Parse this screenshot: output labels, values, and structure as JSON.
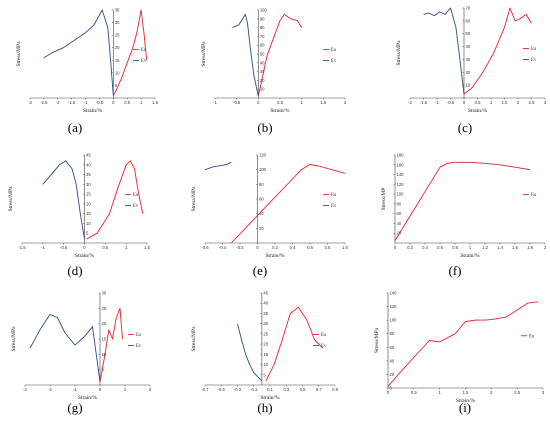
{
  "figure": {
    "background": "#ffffff"
  },
  "colors": {
    "eu": "#e8212b",
    "ev": "#2b4a8c",
    "axis": "#444444"
  },
  "chart_data": [
    {
      "type": "line",
      "label": "(a)",
      "xlabel": "Strain/%",
      "ylabel": "Stress/MPa",
      "xlim": [
        -3,
        1.5
      ],
      "ylim": [
        0,
        35
      ],
      "xticks": [
        "-3",
        "-2.5",
        "-2",
        "-1.5",
        "-1",
        "-0.5",
        "0",
        "0.5",
        "1",
        "1.5"
      ],
      "yticks": [
        "5",
        "10",
        "15",
        "20",
        "25",
        "30",
        "35"
      ],
      "series": [
        {
          "name": "Eu",
          "color": "eu",
          "x": [
            0,
            0.1,
            0.3,
            0.5,
            0.7,
            0.85,
            1,
            1.1,
            1.2
          ],
          "y": [
            1,
            3,
            8,
            14,
            20,
            26,
            35,
            26,
            15
          ]
        },
        {
          "name": "Ev",
          "color": "ev",
          "x": [
            -2.5,
            -2.2,
            -1.8,
            -1.4,
            -1.0,
            -0.7,
            -0.4,
            -0.2,
            -0.1,
            0
          ],
          "y": [
            16,
            18,
            20,
            23,
            26,
            29,
            35,
            28,
            15,
            1
          ]
        }
      ]
    },
    {
      "type": "line",
      "label": "(b)",
      "xlabel": "Strain/%",
      "ylabel": "Stress/MPa",
      "xlim": [
        -1,
        2
      ],
      "ylim": [
        0,
        100
      ],
      "xticks": [
        "-1",
        "-0.5",
        "0",
        "0.5",
        "1",
        "1.5",
        "2"
      ],
      "yticks": [
        "10",
        "20",
        "30",
        "40",
        "50",
        "60",
        "70",
        "80",
        "90",
        "100"
      ],
      "series": [
        {
          "name": "Eu",
          "color": "eu",
          "x": [
            0,
            0.1,
            0.2,
            0.35,
            0.5,
            0.6,
            0.75,
            0.9,
            1.0
          ],
          "y": [
            2,
            25,
            48,
            68,
            88,
            95,
            90,
            88,
            80
          ]
        },
        {
          "name": "Ev",
          "color": "ev",
          "x": [
            -0.6,
            -0.45,
            -0.3,
            -0.25,
            -0.18,
            -0.1,
            0
          ],
          "y": [
            80,
            83,
            95,
            85,
            55,
            25,
            2
          ]
        }
      ]
    },
    {
      "type": "line",
      "label": "(c)",
      "xlabel": "Strain/%",
      "ylabel": "Stress/MPa",
      "xlim": [
        -2,
        3
      ],
      "ylim": [
        0,
        70
      ],
      "xticks": [
        "-2",
        "-1.5",
        "-1",
        "-0.5",
        "0",
        "0.5",
        "1",
        "1.5",
        "2",
        "2.5",
        "3"
      ],
      "yticks": [
        "10",
        "20",
        "30",
        "40",
        "50",
        "60",
        "70"
      ],
      "series": [
        {
          "name": "Eu",
          "color": "eu",
          "x": [
            0,
            0.3,
            0.7,
            1.1,
            1.5,
            1.7,
            1.9,
            2.1,
            2.3,
            2.5
          ],
          "y": [
            3,
            8,
            20,
            35,
            55,
            70,
            60,
            62,
            65,
            58
          ]
        },
        {
          "name": "Ev",
          "color": "ev",
          "x": [
            -1.5,
            -1.3,
            -1.1,
            -0.9,
            -0.7,
            -0.5,
            -0.3,
            -0.15,
            0
          ],
          "y": [
            65,
            66,
            64,
            67,
            65,
            70,
            55,
            30,
            3
          ]
        }
      ]
    },
    {
      "type": "line",
      "label": "(d)",
      "xlabel": "Strain/%",
      "ylabel": "Stress/MPa",
      "xlim": [
        -1.5,
        1.5
      ],
      "ylim": [
        0,
        45
      ],
      "xticks": [
        "-1.5",
        "-1",
        "-0.5",
        "0",
        "0.5",
        "1",
        "1.5"
      ],
      "yticks": [
        "5",
        "10",
        "15",
        "20",
        "25",
        "30",
        "35",
        "40",
        "45"
      ],
      "series": [
        {
          "name": "Eu",
          "color": "eu",
          "x": [
            0.05,
            0.3,
            0.6,
            0.8,
            1.0,
            1.1,
            1.2,
            1.3,
            1.4
          ],
          "y": [
            2,
            5,
            15,
            28,
            40,
            42,
            38,
            25,
            15
          ]
        },
        {
          "name": "Ev",
          "color": "ev",
          "x": [
            -1.0,
            -0.8,
            -0.6,
            -0.45,
            -0.3,
            -0.2,
            -0.1,
            0
          ],
          "y": [
            30,
            35,
            40,
            42,
            38,
            30,
            15,
            2
          ]
        }
      ]
    },
    {
      "type": "line",
      "label": "(e)",
      "xlabel": "Strain/%",
      "ylabel": "Stress/MPa",
      "xlim": [
        -0.6,
        1.0
      ],
      "ylim": [
        0,
        120
      ],
      "xticks": [
        "-0.6",
        "-0.4",
        "-0.2",
        "0",
        "0.2",
        "0.4",
        "0.6",
        "0.8",
        "1.0"
      ],
      "yticks": [
        "20",
        "40",
        "60",
        "80",
        "100",
        "120"
      ],
      "series": [
        {
          "name": "Eu",
          "color": "eu",
          "x": [
            -0.3,
            -0.1,
            0.1,
            0.3,
            0.5,
            0.6,
            0.7,
            0.85,
            1.0
          ],
          "y": [
            0,
            25,
            50,
            75,
            100,
            107,
            105,
            100,
            95
          ]
        },
        {
          "name": "Ev",
          "color": "ev",
          "x": [
            -0.6,
            -0.5,
            -0.4,
            -0.35,
            -0.3
          ],
          "y": [
            100,
            104,
            106,
            107,
            110
          ]
        }
      ]
    },
    {
      "type": "line",
      "label": "(f)",
      "xlabel": "Strain/%",
      "ylabel": "Stress/MP",
      "xlim": [
        0,
        2
      ],
      "ylim": [
        0,
        180
      ],
      "xticks": [
        "0",
        "0.2",
        "0.4",
        "0.6",
        "0.8",
        "1",
        "1.2",
        "1.4",
        "1.6",
        "1.8",
        "2"
      ],
      "yticks": [
        "20",
        "40",
        "60",
        "80",
        "100",
        "120",
        "140",
        "160",
        "180"
      ],
      "series": [
        {
          "name": "Eu",
          "color": "eu",
          "x": [
            0,
            0.2,
            0.4,
            0.6,
            0.7,
            0.8,
            1.0,
            1.2,
            1.4,
            1.6,
            1.8
          ],
          "y": [
            5,
            55,
            105,
            155,
            163,
            165,
            165,
            163,
            160,
            155,
            150
          ]
        }
      ]
    },
    {
      "type": "line",
      "label": "(g)",
      "xlabel": "Strain/%",
      "ylabel": "Stress/MPa",
      "xlim": [
        -3,
        2
      ],
      "ylim": [
        0,
        30
      ],
      "xticks": [
        "-3",
        "-2",
        "-1",
        "0",
        "1",
        "2"
      ],
      "yticks": [
        "5",
        "10",
        "15",
        "20",
        "25",
        "30"
      ],
      "series": [
        {
          "name": "Eu",
          "color": "eu",
          "x": [
            0,
            0.2,
            0.35,
            0.5,
            0.65,
            0.8,
            0.9
          ],
          "y": [
            1,
            10,
            18,
            15,
            22,
            25,
            15
          ]
        },
        {
          "name": "Ev",
          "color": "ev",
          "x": [
            -2.8,
            -2.4,
            -2.0,
            -1.7,
            -1.4,
            -1.0,
            -0.6,
            -0.3,
            0
          ],
          "y": [
            12,
            18,
            23,
            22,
            17,
            13,
            16,
            19,
            1
          ]
        }
      ]
    },
    {
      "type": "line",
      "label": "(h)",
      "xlabel": "Strain/%",
      "ylabel": "Stress/MPa",
      "xlim": [
        -0.7,
        0.9
      ],
      "ylim": [
        0,
        45
      ],
      "xticks": [
        "-0.7",
        "-0.5",
        "-0.3",
        "-0.1",
        "0.1",
        "0.3",
        "0.5",
        "0.7",
        "0.9"
      ],
      "yticks": [
        "5",
        "10",
        "15",
        "20",
        "25",
        "30",
        "35",
        "40",
        "45"
      ],
      "series": [
        {
          "name": "Eu",
          "color": "eu",
          "x": [
            0.05,
            0.15,
            0.25,
            0.35,
            0.45,
            0.55,
            0.65,
            0.75
          ],
          "y": [
            2,
            10,
            22,
            35,
            38,
            32,
            22,
            18
          ]
        },
        {
          "name": "Ev",
          "color": "ev",
          "x": [
            -0.3,
            -0.25,
            -0.2,
            -0.15,
            -0.1,
            -0.05,
            0
          ],
          "y": [
            30,
            22,
            15,
            10,
            6,
            4,
            2
          ]
        }
      ]
    },
    {
      "type": "line",
      "label": "(i)",
      "xlabel": "Strain/%",
      "ylabel": "Stress/MPa",
      "xlim": [
        0,
        3
      ],
      "ylim": [
        0,
        140
      ],
      "xticks": [
        "0",
        "0.5",
        "1",
        "1.5",
        "2",
        "2.5",
        "3"
      ],
      "yticks": [
        "0",
        "20",
        "40",
        "60",
        "80",
        "100",
        "120",
        "140"
      ],
      "series": [
        {
          "name": "Eu",
          "color": "eu",
          "x": [
            0,
            0.2,
            0.5,
            0.8,
            1.0,
            1.3,
            1.5,
            1.7,
            1.9,
            2.1,
            2.3,
            2.5,
            2.7,
            2.9
          ],
          "y": [
            2,
            20,
            45,
            70,
            68,
            80,
            98,
            100,
            100,
            102,
            105,
            115,
            125,
            127
          ]
        }
      ]
    }
  ]
}
